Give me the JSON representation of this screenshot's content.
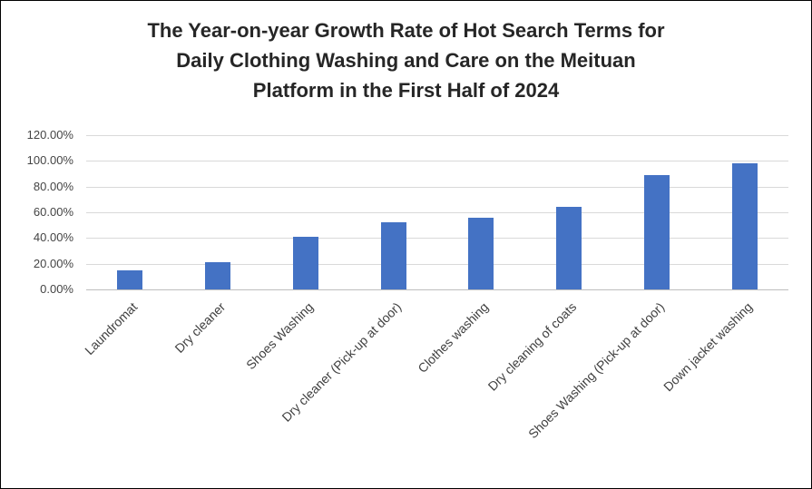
{
  "title": {
    "lines": [
      "The Year-on-year Growth Rate of Hot Search Terms for",
      "Daily Clothing Washing and Care on the Meituan",
      "Platform in the First Half of 2024"
    ]
  },
  "chart_data": {
    "type": "bar",
    "title": "The Year-on-year Growth Rate of Hot Search Terms for Daily Clothing Washing and Care on the Meituan Platform in the First Half of 2024",
    "categories": [
      "Laundromat",
      "Dry cleaner",
      "Shoes Washing",
      "Dry cleaner (Pick-up at door)",
      "Clothes washing",
      "Dry cleaning of coats",
      "Shoes Washing (Pick-up at door)",
      "Down jacket washing"
    ],
    "values": [
      15,
      21,
      41,
      52,
      56,
      64,
      89,
      98
    ],
    "unit": "%",
    "xlabel": "",
    "ylabel": "",
    "ylim": [
      0,
      120
    ],
    "ytick_step": 20,
    "ytick_labels": [
      "0.00%",
      "20.00%",
      "40.00%",
      "60.00%",
      "80.00%",
      "100.00%",
      "120.00%"
    ],
    "bar_color": "#4472C4",
    "grid": true,
    "legend": false
  }
}
